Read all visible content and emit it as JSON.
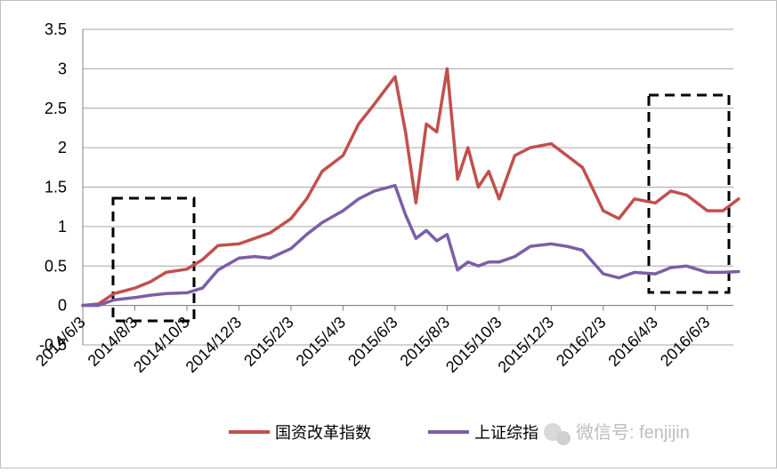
{
  "chart_data": {
    "type": "line",
    "title": "",
    "xlabel": "",
    "ylabel": "",
    "ylim": [
      -0.5,
      3.5
    ],
    "yticks": [
      "-0.5",
      "0",
      "0.5",
      "1",
      "1.5",
      "2",
      "2.5",
      "3",
      "3.5"
    ],
    "xticks": [
      "2014/6/3",
      "2014/8/3",
      "2014/10/3",
      "2014/12/3",
      "2015/2/3",
      "2015/4/3",
      "2015/6/3",
      "2015/8/3",
      "2015/10/3",
      "2015/12/3",
      "2016/2/3",
      "2016/4/3",
      "2016/6/3"
    ],
    "grid": "horizontal",
    "legend_position": "bottom",
    "x": [
      0.0,
      0.3,
      0.6,
      1.0,
      1.3,
      1.6,
      2.0,
      2.3,
      2.6,
      3.0,
      3.3,
      3.6,
      4.0,
      4.3,
      4.6,
      5.0,
      5.3,
      5.6,
      6.0,
      6.2,
      6.4,
      6.6,
      6.8,
      7.0,
      7.2,
      7.4,
      7.6,
      7.8,
      8.0,
      8.3,
      8.6,
      9.0,
      9.3,
      9.6,
      10.0,
      10.3,
      10.6,
      11.0,
      11.3,
      11.6,
      12.0,
      12.3,
      12.6
    ],
    "series": [
      {
        "name": "国资改革指数",
        "color": "#c0504d",
        "values": [
          0.0,
          0.02,
          0.15,
          0.22,
          0.3,
          0.42,
          0.46,
          0.58,
          0.76,
          0.78,
          0.85,
          0.92,
          1.1,
          1.35,
          1.7,
          1.9,
          2.3,
          2.55,
          2.9,
          2.2,
          1.3,
          2.3,
          2.2,
          3.0,
          1.6,
          2.0,
          1.5,
          1.7,
          1.35,
          1.9,
          2.0,
          2.05,
          1.9,
          1.75,
          1.2,
          1.1,
          1.35,
          1.3,
          1.45,
          1.4,
          1.2,
          1.2,
          1.35
        ]
      },
      {
        "name": "上证综指",
        "color": "#7b5ea7",
        "values": [
          0.0,
          0.0,
          0.07,
          0.1,
          0.13,
          0.15,
          0.16,
          0.22,
          0.45,
          0.6,
          0.62,
          0.6,
          0.72,
          0.9,
          1.05,
          1.2,
          1.35,
          1.45,
          1.52,
          1.15,
          0.85,
          0.95,
          0.82,
          0.9,
          0.45,
          0.55,
          0.5,
          0.55,
          0.55,
          0.62,
          0.75,
          0.78,
          0.75,
          0.7,
          0.4,
          0.35,
          0.42,
          0.4,
          0.48,
          0.5,
          0.42,
          0.42,
          0.43
        ]
      }
    ]
  },
  "watermark": {
    "text": "微信号: fenjijin"
  }
}
